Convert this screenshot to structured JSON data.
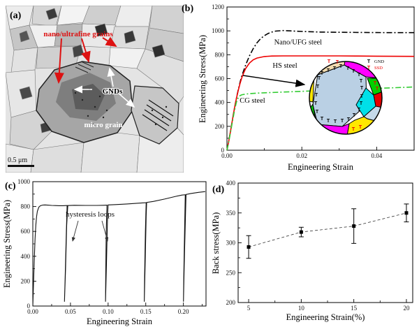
{
  "panel_a": {
    "label": "(a)",
    "nano_label": "nano/ultrafine grains",
    "gnds_label": "GNDs",
    "micro_label": "micro grain",
    "scalebar_label": "0.5 μm",
    "annotation_color": "#dd1111"
  },
  "chart_data": [
    {
      "id": "b",
      "panel_label": "(b)",
      "type": "line",
      "xlabel": "Engineering Strain",
      "ylabel": "Engineering Stress(MPa)",
      "xlim": [
        0,
        0.05
      ],
      "ylim": [
        0,
        1200
      ],
      "xticks": {
        "values": [
          0,
          0.02,
          0.04
        ],
        "labels": [
          "0.00",
          "0.02",
          "0.04"
        ],
        "minor": [
          0.01,
          0.03
        ]
      },
      "yticks": {
        "values": [
          0,
          200,
          400,
          600,
          800,
          1000,
          1200
        ],
        "labels": [
          "0",
          "200",
          "400",
          "600",
          "800",
          "1000",
          "1200"
        ],
        "minor": [
          100,
          300,
          500,
          700,
          900,
          1100
        ]
      },
      "series": [
        {
          "name": "Nano/UFG steel",
          "color": "#000000",
          "style": "dashdot",
          "width": 1.6,
          "label_pos": [
            0.019,
            888
          ],
          "x": [
            0,
            0.0005,
            0.001,
            0.0015,
            0.002,
            0.0025,
            0.003,
            0.0035,
            0.004,
            0.005,
            0.006,
            0.007,
            0.008,
            0.009,
            0.01,
            0.011,
            0.012,
            0.013,
            0.015,
            0.017,
            0.02,
            0.025,
            0.03,
            0.035,
            0.04,
            0.045,
            0.05
          ],
          "y": [
            0,
            80,
            170,
            260,
            350,
            430,
            505,
            570,
            625,
            715,
            790,
            850,
            900,
            935,
            960,
            978,
            990,
            998,
            1003,
            1000,
            995,
            990,
            988,
            987,
            986,
            985,
            985
          ]
        },
        {
          "name": "HS steel",
          "color": "#ee0000",
          "style": "solid",
          "width": 1.6,
          "label_pos": [
            0.0155,
            690
          ],
          "x": [
            0,
            0.0005,
            0.001,
            0.0015,
            0.002,
            0.0025,
            0.003,
            0.0035,
            0.004,
            0.0045,
            0.005,
            0.006,
            0.007,
            0.008,
            0.01,
            0.012,
            0.015,
            0.02,
            0.025,
            0.03,
            0.035,
            0.04,
            0.045,
            0.05
          ],
          "y": [
            0,
            80,
            170,
            260,
            350,
            430,
            500,
            560,
            610,
            650,
            685,
            730,
            757,
            772,
            785,
            789,
            790,
            790,
            790,
            790,
            789,
            788,
            787,
            786
          ]
        },
        {
          "name": "CG steel",
          "color": "#33cc33",
          "style": "dashdot",
          "width": 1.6,
          "label_pos": [
            0.0068,
            398
          ],
          "x": [
            0,
            0.0005,
            0.001,
            0.0015,
            0.002,
            0.0025,
            0.003,
            0.0035,
            0.004,
            0.005,
            0.006,
            0.008,
            0.01,
            0.014,
            0.018,
            0.022,
            0.026,
            0.03,
            0.035,
            0.04,
            0.045,
            0.05
          ],
          "y": [
            0,
            75,
            160,
            245,
            330,
            400,
            440,
            458,
            465,
            470,
            474,
            478,
            481,
            486,
            491,
            496,
            501,
            506,
            512,
            518,
            524,
            530
          ]
        }
      ],
      "inset": {
        "legend": [
          {
            "symbol": "T",
            "label": "GND",
            "color": "#000000"
          },
          {
            "symbol": "T",
            "label": "SSD",
            "color": "#ee0000"
          }
        ]
      }
    },
    {
      "id": "c",
      "panel_label": "(c)",
      "type": "line",
      "annotation": "hysteresis loops",
      "xlabel": "Engineering Strain",
      "ylabel": "Engineering Stress(MPa)",
      "xlim": [
        0,
        0.23
      ],
      "ylim": [
        0,
        1000
      ],
      "xticks": {
        "values": [
          0,
          0.05,
          0.1,
          0.15,
          0.2
        ],
        "labels": [
          "0.00",
          "0.05",
          "0.10",
          "0.15",
          "0.20"
        ],
        "minor": [
          0.025,
          0.075,
          0.125,
          0.175,
          0.225
        ]
      },
      "yticks": {
        "values": [
          0,
          200,
          400,
          600,
          800,
          1000
        ],
        "labels": [
          "0",
          "200",
          "400",
          "600",
          "800",
          "1000"
        ],
        "minor": [
          100,
          300,
          500,
          700,
          900
        ]
      },
      "series": [
        {
          "name": "cyclic loading curve",
          "color": "#111111",
          "style": "solid",
          "width": 1.1,
          "x": [
            0,
            0.001,
            0.002,
            0.003,
            0.004,
            0.005,
            0.006,
            0.008,
            0.01,
            0.013,
            0.016,
            0.02,
            0.025,
            0.03,
            0.035,
            0.04,
            0.044,
            0.0455,
            0.0445,
            0.043,
            0.042,
            0.0435,
            0.045,
            0.0465,
            0.055,
            0.07,
            0.085,
            0.094,
            0.0985,
            0.0975,
            0.0968,
            0.0965,
            0.0978,
            0.0992,
            0.1,
            0.11,
            0.125,
            0.14,
            0.147,
            0.1505,
            0.1495,
            0.1485,
            0.148,
            0.1492,
            0.1505,
            0.1512,
            0.16,
            0.175,
            0.19,
            0.198,
            0.2025,
            0.2015,
            0.2005,
            0.2,
            0.2012,
            0.2028,
            0.2035,
            0.21,
            0.22,
            0.229
          ],
          "y": [
            0,
            200,
            390,
            540,
            650,
            720,
            762,
            795,
            806,
            812,
            813,
            811,
            809,
            808,
            807,
            807,
            808,
            808,
            600,
            250,
            35,
            300,
            650,
            808,
            810,
            809,
            809,
            810,
            811,
            600,
            250,
            35,
            350,
            720,
            813,
            816,
            821,
            827,
            830,
            831,
            600,
            250,
            35,
            350,
            720,
            833,
            841,
            860,
            882,
            892,
            895,
            600,
            250,
            35,
            350,
            750,
            897,
            905,
            914,
            920
          ]
        }
      ]
    },
    {
      "id": "d",
      "panel_label": "(d)",
      "type": "scatter",
      "xlabel": "Engineering Strain(%)",
      "ylabel": "Back stress(MPa)",
      "xlim": [
        4,
        20.6
      ],
      "ylim": [
        200,
        400
      ],
      "xticks": {
        "values": [
          5,
          10,
          15,
          20
        ],
        "labels": [
          "5",
          "10",
          "15",
          "20"
        ],
        "minor": [
          7.5,
          12.5,
          17.5
        ]
      },
      "yticks": {
        "values": [
          200,
          250,
          300,
          350,
          400
        ],
        "labels": [
          "200",
          "250",
          "300",
          "350",
          "400"
        ],
        "minor": [
          225,
          275,
          325,
          375
        ]
      },
      "points": {
        "x": [
          5,
          10,
          15,
          20
        ],
        "y": [
          293,
          318,
          328,
          350
        ],
        "yerr": [
          19,
          8,
          29,
          15
        ]
      }
    }
  ]
}
